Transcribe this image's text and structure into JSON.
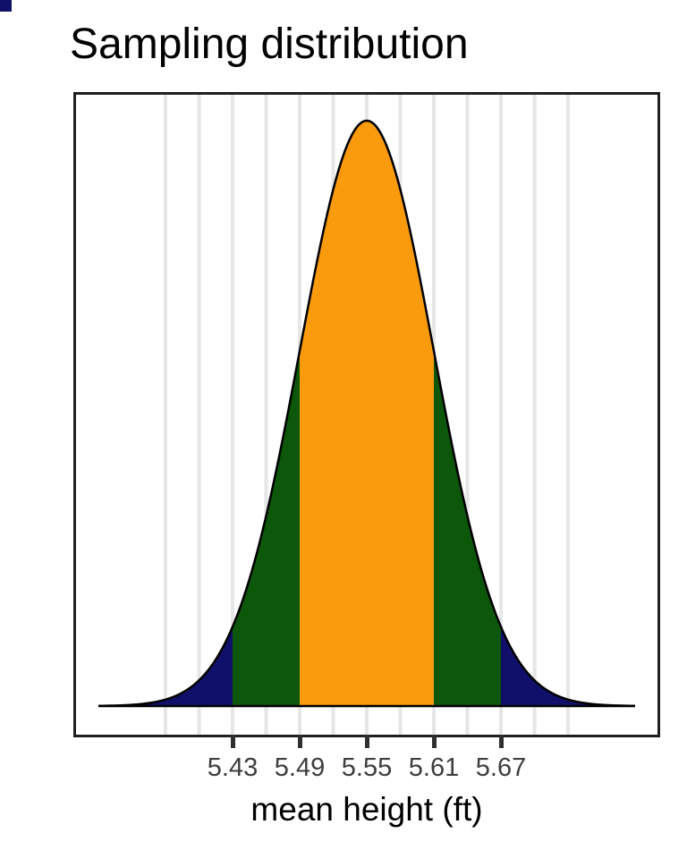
{
  "page": {
    "title": "Sampling distribution"
  },
  "chart_data": {
    "type": "area",
    "title": "Sampling distribution",
    "subtitle": "",
    "xlabel": "mean height (ft)",
    "ylabel": "",
    "distribution": "normal",
    "mean": 5.55,
    "sd": 0.06,
    "x_axis": {
      "range": [
        5.29,
        5.81
      ],
      "curve_range": [
        5.31,
        5.79
      ],
      "ticks": [
        5.43,
        5.49,
        5.55,
        5.61,
        5.67
      ],
      "tick_labels": [
        "5.43",
        "5.49",
        "5.55",
        "5.61",
        "5.67"
      ],
      "gridlines": [
        5.37,
        5.4,
        5.43,
        5.46,
        5.49,
        5.52,
        5.55,
        5.58,
        5.61,
        5.64,
        5.67,
        5.7,
        5.73
      ],
      "grid_on": true
    },
    "y_axis": {
      "visible": false
    },
    "legend": null,
    "regions": [
      {
        "name": "left-tail-beyond-2sd",
        "from": 5.31,
        "to": 5.43,
        "color": "#10106A"
      },
      {
        "name": "left-between-1-and-2sd",
        "from": 5.43,
        "to": 5.49,
        "color": "#0D570A"
      },
      {
        "name": "within-1sd",
        "from": 5.49,
        "to": 5.61,
        "color": "#FA9B0E"
      },
      {
        "name": "right-between-1-and-2sd",
        "from": 5.61,
        "to": 5.67,
        "color": "#0D570A"
      },
      {
        "name": "right-tail-beyond-2sd",
        "from": 5.67,
        "to": 5.79,
        "color": "#10106A"
      }
    ],
    "colors": {
      "within_1sd": "#FA9B0E",
      "between_1_2sd": "#0D570A",
      "beyond_2sd": "#10106A",
      "curve_outline": "#000000",
      "baseline": "#000000",
      "gridline": "#E6E6E6",
      "plot_border": "#1F1F1F",
      "tick_mark": "#2F2F2F",
      "tick_label": "#3D3D3D",
      "corner_artifact": "#10106A"
    }
  }
}
